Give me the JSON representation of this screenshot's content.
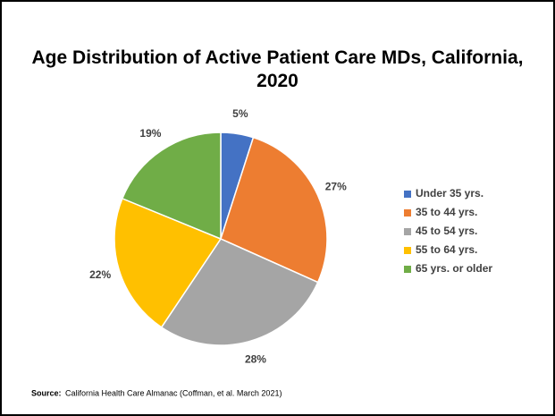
{
  "chart_data": {
    "type": "pie",
    "title": "Age Distribution of Active Patient Care MDs, California, 2020",
    "categories": [
      "Under 35 yrs.",
      "35 to 44 yrs.",
      "45 to 54 yrs.",
      "55 to 64 yrs.",
      "65 yrs. or older"
    ],
    "values": [
      5,
      27,
      28,
      22,
      19
    ],
    "value_labels": [
      "5%",
      "27%",
      "28%",
      "22%",
      "19%"
    ],
    "colors": [
      "#4472c4",
      "#ed7d31",
      "#a5a5a5",
      "#ffc000",
      "#70ad47"
    ],
    "legend": "right",
    "source_label": "Source:",
    "source": "California Health Care Almanac (Coffman, et al. March 2021)"
  }
}
